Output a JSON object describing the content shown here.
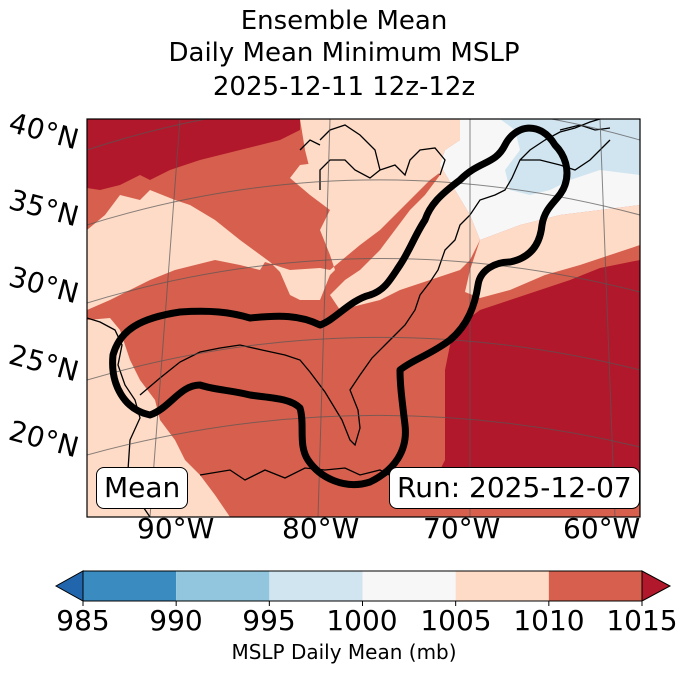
{
  "title": {
    "line1": "Ensemble Mean",
    "line2": "Daily Mean Minimum MSLP",
    "line3": "2025-12-11 12z-12z"
  },
  "map": {
    "latitude_labels": [
      "40°N",
      "35°N",
      "30°N",
      "25°N",
      "20°N"
    ],
    "longitude_labels": [
      "90°W",
      "80°W",
      "70°W",
      "60°W"
    ],
    "mean_label": "Mean",
    "run_label": "Run: 2025-12-07",
    "colors": {
      "c1015": "#b2182b",
      "c1010": "#d6604d",
      "c1005": "#fddbc7",
      "c1000": "#f7f7f7",
      "c995": "#d1e5f0",
      "c990": "#92c5de",
      "c985": "#4393c3"
    }
  },
  "colorbar": {
    "ticks": [
      "985",
      "990",
      "995",
      "1000",
      "1005",
      "1010",
      "1015"
    ],
    "label": "MSLP Daily Mean (mb)",
    "bins": [
      {
        "from": 985,
        "to": 990,
        "color": "#3a8cc0"
      },
      {
        "from": 990,
        "to": 995,
        "color": "#92c5de"
      },
      {
        "from": 995,
        "to": 1000,
        "color": "#d1e5f0"
      },
      {
        "from": 1000,
        "to": 1005,
        "color": "#f7f7f7"
      },
      {
        "from": 1005,
        "to": 1010,
        "color": "#fddbc7"
      },
      {
        "from": 1010,
        "to": 1015,
        "color": "#d6604d"
      }
    ],
    "under_color": "#2166ac",
    "over_color": "#b2182b"
  }
}
